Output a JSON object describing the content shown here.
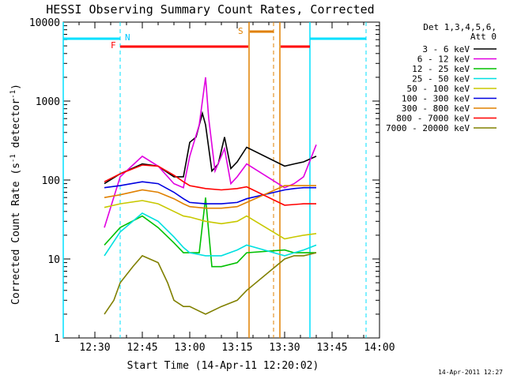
{
  "chart_data": {
    "type": "line",
    "title": "HESSI Observing Summary Count Rates, Corrected",
    "xlabel": "Start Time (14-Apr-11 12:20:02)",
    "ylabel": "Corrected Count Rate (s^-1 detector^-1)",
    "ylabel_main": "Corrected Count Rate (s",
    "ylabel_sup1": "-1",
    "ylabel_mid": " detector",
    "ylabel_sup2": "-1",
    "ylabel_end": ")",
    "y_scale": "log",
    "ylim": [
      1,
      10000
    ],
    "xlim": [
      "12:20",
      "14:00"
    ],
    "x_ticks": [
      "12:30",
      "12:45",
      "13:00",
      "13:15",
      "13:30",
      "13:45",
      "14:00"
    ],
    "y_ticks": [
      "1",
      "10",
      "100",
      "1000",
      "10000"
    ],
    "legend_position": "top-right",
    "legend_header": [
      "Det 1,3,4,5,6,",
      "Att 0"
    ],
    "footer": "14-Apr-2011 12:27",
    "series": [
      {
        "name": "3 - 6 keV",
        "color": "#000000",
        "x": [
          "12:33",
          "12:38",
          "12:45",
          "12:50",
          "12:55",
          "12:58",
          "13:00",
          "13:02",
          "13:04",
          "13:05",
          "13:07",
          "13:09",
          "13:11",
          "13:13",
          "13:15",
          "13:18",
          "13:30",
          "13:33",
          "13:36",
          "13:40"
        ],
        "y": [
          90,
          120,
          160,
          150,
          110,
          110,
          300,
          350,
          700,
          500,
          130,
          160,
          350,
          140,
          170,
          260,
          150,
          160,
          170,
          200
        ]
      },
      {
        "name": "6 - 12 keV",
        "color": "#e000e0",
        "x": [
          "12:33",
          "12:38",
          "12:45",
          "12:50",
          "12:55",
          "12:58",
          "13:00",
          "13:03",
          "13:05",
          "13:06",
          "13:08",
          "13:11",
          "13:13",
          "13:15",
          "13:18",
          "13:30",
          "13:33",
          "13:36",
          "13:40"
        ],
        "y": [
          25,
          110,
          200,
          150,
          90,
          80,
          200,
          500,
          2000,
          600,
          130,
          250,
          90,
          110,
          160,
          80,
          90,
          110,
          280
        ]
      },
      {
        "name": "12 - 25 keV",
        "color": "#00c000",
        "x": [
          "12:33",
          "12:38",
          "12:45",
          "12:50",
          "12:55",
          "12:58",
          "13:00",
          "13:03",
          "13:05",
          "13:07",
          "13:10",
          "13:15",
          "13:18",
          "13:30",
          "13:33",
          "13:36",
          "13:40"
        ],
        "y": [
          15,
          25,
          35,
          25,
          16,
          12,
          12,
          12,
          60,
          8,
          8,
          9,
          12,
          13,
          12,
          12,
          12
        ]
      },
      {
        "name": "25 - 50 keV",
        "color": "#00e0e0",
        "x": [
          "12:33",
          "12:38",
          "12:45",
          "12:50",
          "12:55",
          "12:58",
          "13:00",
          "13:05",
          "13:10",
          "13:15",
          "13:18",
          "13:30",
          "13:33",
          "13:36",
          "13:40"
        ],
        "y": [
          11,
          22,
          38,
          30,
          19,
          14,
          12,
          11,
          11,
          13,
          15,
          11,
          12,
          13,
          15
        ]
      },
      {
        "name": "50 - 100 keV",
        "color": "#c8c800",
        "x": [
          "12:33",
          "12:38",
          "12:45",
          "12:50",
          "12:55",
          "12:58",
          "13:00",
          "13:05",
          "13:10",
          "13:15",
          "13:18",
          "13:30",
          "13:33",
          "13:36",
          "13:40"
        ],
        "y": [
          45,
          50,
          55,
          50,
          40,
          35,
          34,
          30,
          28,
          30,
          35,
          18,
          19,
          20,
          21
        ]
      },
      {
        "name": "100 - 300 keV",
        "color": "#0000e0",
        "x": [
          "12:33",
          "12:38",
          "12:45",
          "12:50",
          "12:55",
          "12:58",
          "13:00",
          "13:05",
          "13:10",
          "13:15",
          "13:18",
          "13:30",
          "13:33",
          "13:36",
          "13:40"
        ],
        "y": [
          80,
          85,
          95,
          90,
          70,
          58,
          52,
          50,
          50,
          52,
          58,
          75,
          78,
          80,
          80
        ]
      },
      {
        "name": "300 - 800 keV",
        "color": "#e08000",
        "x": [
          "12:33",
          "12:38",
          "12:45",
          "12:50",
          "12:55",
          "12:58",
          "13:00",
          "13:05",
          "13:10",
          "13:15",
          "13:18",
          "13:30",
          "13:33",
          "13:36",
          "13:40"
        ],
        "y": [
          60,
          65,
          75,
          70,
          58,
          50,
          46,
          44,
          44,
          46,
          52,
          85,
          85,
          85,
          85
        ]
      },
      {
        "name": "800 - 7000 keV",
        "color": "#ff0000",
        "x": [
          "12:33",
          "12:38",
          "12:45",
          "12:50",
          "12:55",
          "12:58",
          "13:00",
          "13:05",
          "13:10",
          "13:15",
          "13:18",
          "13:30",
          "13:33",
          "13:36",
          "13:40"
        ],
        "y": [
          95,
          120,
          155,
          150,
          115,
          95,
          85,
          78,
          75,
          78,
          82,
          48,
          49,
          50,
          50
        ]
      },
      {
        "name": "7000 - 20000 keV",
        "color": "#808000",
        "x": [
          "12:33",
          "12:36",
          "12:38",
          "12:42",
          "12:45",
          "12:50",
          "12:53",
          "12:55",
          "12:58",
          "13:00",
          "13:05",
          "13:10",
          "13:15",
          "13:18",
          "13:30",
          "13:33",
          "13:36",
          "13:40"
        ],
        "y": [
          2,
          3,
          5,
          8,
          11,
          9,
          5,
          3,
          2.5,
          2.5,
          2,
          2.5,
          3,
          4,
          10,
          11,
          11,
          12
        ]
      }
    ],
    "flags": [
      {
        "label": "N",
        "label_color": "#00c8ff"
      },
      {
        "label": "F",
        "label_color": "#ff0000"
      },
      {
        "label": "S",
        "label_color": "#e08000"
      }
    ]
  }
}
